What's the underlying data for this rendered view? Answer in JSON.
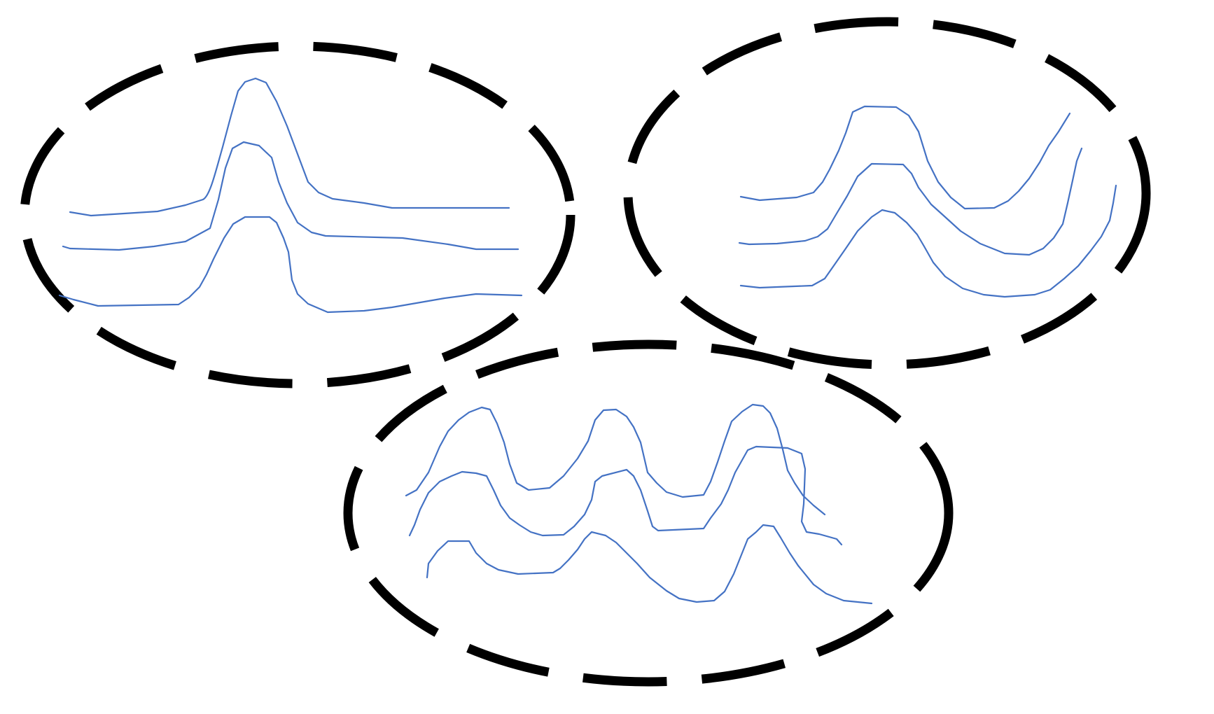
{
  "diagram": {
    "colors": {
      "ellipse_stroke": "#000000",
      "waveform_stroke": "#4472C4",
      "background": "#FFFFFF"
    },
    "groups": [
      {
        "id": "group-single-peak",
        "waveform_count": 3,
        "peaks_per_waveform": 1
      },
      {
        "id": "group-double-peak",
        "waveform_count": 3,
        "peaks_per_waveform": 2
      },
      {
        "id": "group-triple-peak",
        "waveform_count": 3,
        "peaks_per_waveform": 3
      }
    ]
  }
}
